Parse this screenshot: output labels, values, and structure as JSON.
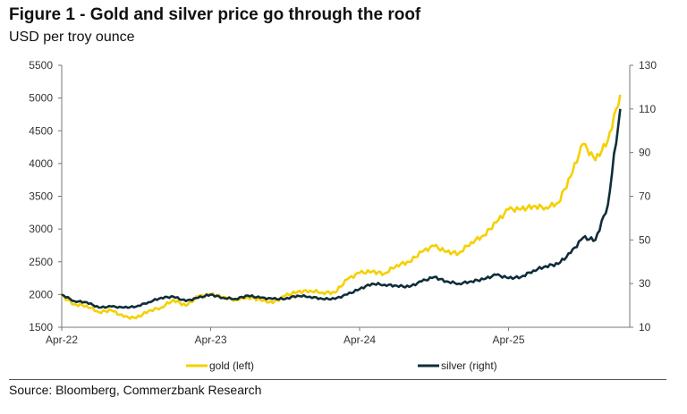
{
  "chart_data": {
    "type": "line",
    "title": "Figure 1 - Gold and silver price go through the roof",
    "subtitle": "USD per troy ounce",
    "source": "Source: Bloomberg, Commerzbank Research",
    "x_ticks": [
      "Apr-22",
      "Apr-23",
      "Apr-24",
      "Apr-25"
    ],
    "x_start": "Apr-22",
    "x_end": "Jan-26",
    "y_left": {
      "ticks": [
        "1500",
        "2000",
        "2500",
        "3000",
        "3500",
        "4000",
        "4500",
        "5000",
        "5500"
      ],
      "range": [
        1500,
        5500
      ]
    },
    "y_right": {
      "ticks": [
        "10",
        "30",
        "50",
        "70",
        "90",
        "110",
        "130"
      ],
      "range": [
        10,
        130
      ]
    },
    "months": [
      "Apr-22",
      "May-22",
      "Jun-22",
      "Jul-22",
      "Aug-22",
      "Sep-22",
      "Oct-22",
      "Nov-22",
      "Dec-22",
      "Jan-23",
      "Feb-23",
      "Mar-23",
      "Apr-23",
      "May-23",
      "Jun-23",
      "Jul-23",
      "Aug-23",
      "Sep-23",
      "Oct-23",
      "Nov-23",
      "Dec-23",
      "Jan-24",
      "Feb-24",
      "Mar-24",
      "Apr-24",
      "May-24",
      "Jun-24",
      "Jul-24",
      "Aug-24",
      "Sep-24",
      "Oct-24",
      "Nov-24",
      "Dec-24",
      "Jan-25",
      "Feb-25",
      "Mar-25",
      "Apr-25",
      "May-25",
      "Jun-25",
      "Jul-25",
      "Aug-25",
      "Sep-25",
      "Oct-25",
      "Nov-25",
      "Dec-25",
      "Jan-26"
    ],
    "series": [
      {
        "name": "gold (left)",
        "axis": "left",
        "color": "#f5d000",
        "values": [
          1980,
          1850,
          1830,
          1730,
          1760,
          1660,
          1640,
          1750,
          1800,
          1920,
          1830,
          1970,
          2000,
          1960,
          1920,
          1960,
          1920,
          1870,
          1980,
          2040,
          2060,
          2030,
          2030,
          2230,
          2330,
          2350,
          2320,
          2450,
          2500,
          2650,
          2740,
          2650,
          2630,
          2800,
          2900,
          3100,
          3300,
          3300,
          3350,
          3330,
          3400,
          3800,
          4300,
          4050,
          4350,
          5050
        ]
      },
      {
        "name": "silver (right)",
        "axis": "right",
        "color": "#0f2d3a",
        "values": [
          25,
          22,
          21.5,
          19,
          19.5,
          19,
          19.5,
          21.5,
          23.5,
          24,
          22,
          23.5,
          25,
          23.5,
          23,
          24.5,
          23.5,
          23,
          23,
          24.5,
          24,
          23,
          23,
          25,
          27.5,
          30,
          29.5,
          29,
          28.5,
          31,
          33,
          31,
          30,
          31,
          32,
          34,
          32.5,
          33,
          36,
          38,
          39,
          44,
          51,
          50,
          66,
          110
        ]
      }
    ]
  }
}
